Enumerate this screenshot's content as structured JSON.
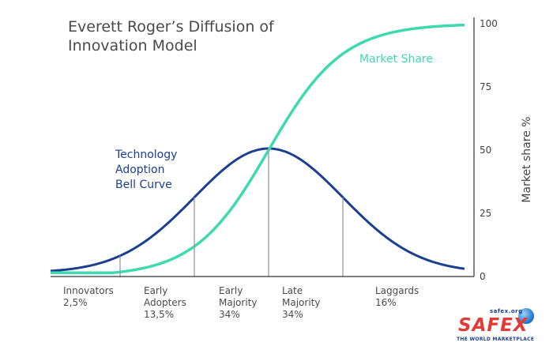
{
  "title": [
    "Everett Roger’s Diffusion of",
    "Innovation Model"
  ],
  "colors": {
    "bell_curve": "#1a3f8f",
    "market_share": "#3fd9b0",
    "axis": "#333333",
    "divider": "#999999"
  },
  "chart_data": {
    "type": "line",
    "ylabel": "Market share %",
    "ylim": [
      0,
      100
    ],
    "yticks": [
      0,
      25,
      50,
      75,
      100
    ],
    "grid": false,
    "series": [
      {
        "name": "Technology Adoption Bell Curve",
        "label_lines": [
          "Technology",
          "Adoption",
          "Bell Curve"
        ]
      },
      {
        "name": "Market Share"
      }
    ],
    "segments": [
      {
        "name": "Innovators",
        "share": "2,5%"
      },
      {
        "name": "Early Adopters",
        "share": "13,5%"
      },
      {
        "name": "Early Majority",
        "share": "34%"
      },
      {
        "name": "Late Majority",
        "share": "34%"
      },
      {
        "name": "Laggards",
        "share": "16%"
      }
    ]
  },
  "segment_labels": [
    {
      "lines": [
        "Innovators",
        "2,5%"
      ]
    },
    {
      "lines": [
        "Early",
        "Adopters",
        "13,5%"
      ]
    },
    {
      "lines": [
        "Early",
        "Majority",
        "34%"
      ]
    },
    {
      "lines": [
        "Late",
        "Majority",
        "34%"
      ]
    },
    {
      "lines": [
        "Laggards",
        "16%"
      ]
    }
  ],
  "logo": {
    "url": "safex.org",
    "word": "SAFEX",
    "tagline": "THE WORLD MARKETPLACE"
  }
}
